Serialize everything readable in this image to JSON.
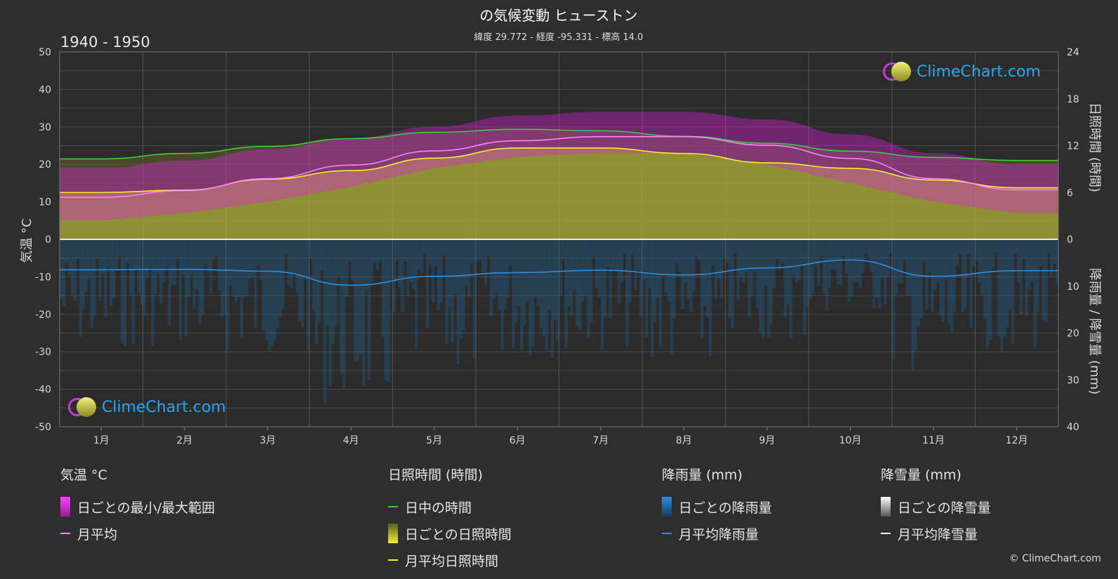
{
  "header": {
    "title": "の気候変動 ヒューストン",
    "subtitle": "緯度 29.772 - 経度 -95.331 - 標高 14.0",
    "period": "1940 - 1950"
  },
  "axes": {
    "left_title": "気温 °C",
    "right_top_title": "日照時間 (時間)",
    "right_bottom_title": "降雨量 / 降雪量 (mm)"
  },
  "logo_text": "ClimeChart.com",
  "copyright": "© ClimeChart.com",
  "legend": {
    "temperature": {
      "head": "気温 °C",
      "range": "日ごとの最小/最大範囲",
      "avg": "月平均"
    },
    "sunshine": {
      "head": "日照時間 (時間)",
      "daylight": "日中の時間",
      "daily": "日ごとの日照時間",
      "avg": "月平均日照時間"
    },
    "rain": {
      "head": "降雨量 (mm)",
      "daily": "日ごとの降雨量",
      "avg": "月平均降雨量"
    },
    "snow": {
      "head": "降雪量 (mm)",
      "daily": "日ごとの降雪量",
      "avg": "月平均降雪量"
    }
  },
  "colors": {
    "temp_range": "#e020e0",
    "temp_avg": "#ff80ff",
    "daylight": "#3ccf3c",
    "sunshine_fill": "#c8c83c",
    "sunshine_avg": "#f4f032",
    "rain_fill": "#1e6fae",
    "rain_avg": "#2b8fe0",
    "snow": "#ffffff"
  },
  "chart_data": {
    "type": "line",
    "months": [
      "1月",
      "2月",
      "3月",
      "4月",
      "5月",
      "6月",
      "7月",
      "8月",
      "9月",
      "10月",
      "11月",
      "12月"
    ],
    "temp_axis": {
      "ylim": [
        -50,
        50
      ],
      "ticks": [
        50,
        40,
        30,
        20,
        10,
        0,
        -10,
        -20,
        -30,
        -40,
        -50
      ]
    },
    "sunshine_axis": {
      "ylim": [
        0,
        24
      ],
      "ticks": [
        24,
        18,
        12,
        6,
        0
      ]
    },
    "precip_axis": {
      "ylim": [
        0,
        40
      ],
      "ticks": [
        0,
        10,
        20,
        30,
        40
      ]
    },
    "series": [
      {
        "name": "日中の時間",
        "unit": "時間",
        "values": [
          10.3,
          11.0,
          11.9,
          12.9,
          13.7,
          14.1,
          13.9,
          13.2,
          12.3,
          11.3,
          10.5,
          10.1
        ]
      },
      {
        "name": "月平均日照時間",
        "unit": "時間",
        "values": [
          6.0,
          6.3,
          7.7,
          8.8,
          10.4,
          11.7,
          11.7,
          11.0,
          9.8,
          9.1,
          7.6,
          6.6
        ]
      },
      {
        "name": "月平均",
        "unit": "°C",
        "values": [
          11.2,
          13.0,
          16.2,
          19.8,
          23.6,
          26.3,
          27.4,
          27.4,
          25.1,
          21.6,
          16.2,
          13.2
        ]
      },
      {
        "name": "月平均降雨量",
        "unit": "mm",
        "values": [
          6.5,
          6.4,
          6.8,
          9.8,
          7.9,
          7.1,
          6.6,
          7.6,
          6.1,
          4.4,
          7.9,
          6.7
        ]
      },
      {
        "name": "月平均降雪量",
        "unit": "mm",
        "values": [
          0,
          0,
          0,
          0,
          0,
          0,
          0,
          0,
          0,
          0,
          0,
          0
        ]
      }
    ],
    "daily_temp_range_approx": {
      "min": [
        5,
        7,
        10,
        14,
        19,
        22,
        23,
        23,
        20,
        15,
        10,
        7
      ],
      "max": [
        19,
        21,
        24,
        27,
        30,
        33,
        34,
        34,
        32,
        28,
        23,
        20
      ]
    }
  }
}
